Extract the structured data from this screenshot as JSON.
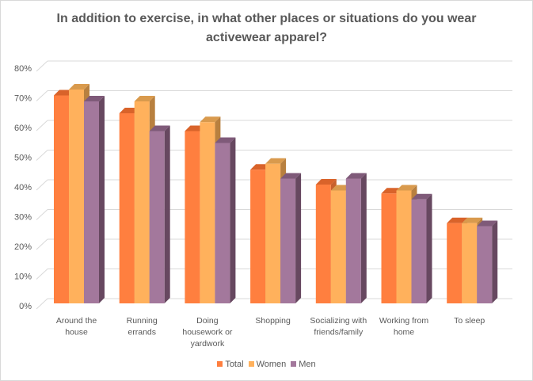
{
  "chart_data": {
    "type": "bar",
    "title": "In addition to exercise, in what other places or situations do you wear activewear apparel?",
    "categories": [
      [
        "Around the",
        "house"
      ],
      [
        "Running",
        "errands"
      ],
      [
        "Doing",
        "housework or",
        "yardwork"
      ],
      [
        "Shopping"
      ],
      [
        "Socializing with",
        "friends/family"
      ],
      [
        "Working from",
        "home"
      ],
      [
        "To sleep"
      ]
    ],
    "series": [
      {
        "name": "Total",
        "color": "#ff7f3f",
        "top": "#d9632a",
        "side": "#c8602c",
        "values": [
          70,
          64,
          58,
          45,
          40,
          37,
          27
        ]
      },
      {
        "name": "Women",
        "color": "#ffb15c",
        "top": "#d99a4d",
        "side": "#b8803f",
        "values": [
          72,
          68,
          61,
          47,
          38,
          38,
          27
        ]
      },
      {
        "name": "Men",
        "color": "#a3789c",
        "top": "#7f5a79",
        "side": "#674860",
        "values": [
          68,
          58,
          54,
          42,
          42,
          35,
          26
        ]
      }
    ],
    "yticks": [
      "0%",
      "10%",
      "20%",
      "30%",
      "40%",
      "50%",
      "60%",
      "70%",
      "80%"
    ],
    "ylim": [
      0,
      80
    ],
    "grid": true,
    "legend": "bottom"
  }
}
